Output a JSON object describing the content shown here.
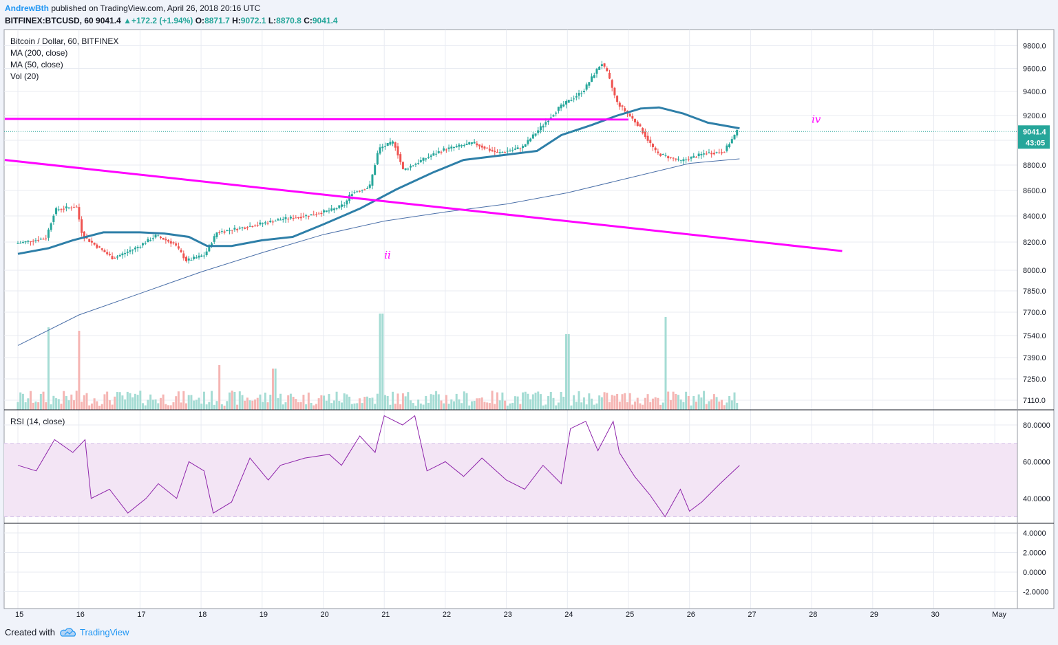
{
  "header": {
    "author": "AndrewBth",
    "published": "published on TradingView.com, April 26, 2018 20:16 UTC",
    "symbol": "BITFINEX:BTCUSD, 60",
    "last": "9041.4",
    "change": "+172.2 (+1.94%)",
    "open_label": "O:",
    "open": "8871.7",
    "high_label": "H:",
    "high": "9072.1",
    "low_label": "L:",
    "low": "8870.8",
    "close_label": "C:",
    "close": "9041.4"
  },
  "legend": {
    "title": "Bitcoin / Dollar, 60, BITFINEX",
    "ma200": "MA (200, close)",
    "ma50": "MA (50, close)",
    "vol": "Vol (20)",
    "rsi": "RSI (14, close)"
  },
  "footer": {
    "created_with": "Created with",
    "brand": "TradingView"
  },
  "colors": {
    "up": "#26a69a",
    "down": "#ef5350",
    "trendline": "#ff00ff",
    "ma50": "#2e7fa8",
    "ma200": "#4a6fa8",
    "rsi": "#8e24aa",
    "rsi_band": "#f3e5f5"
  },
  "chart_data": {
    "type": "candlestick",
    "x_ticks": [
      "15",
      "16",
      "17",
      "18",
      "19",
      "20",
      "21",
      "22",
      "23",
      "24",
      "25",
      "26",
      "27",
      "28",
      "29",
      "30",
      "May"
    ],
    "price_ticks": [
      "9800.0",
      "9600.0",
      "9400.0",
      "9200.0",
      "9000.0",
      "8800.0",
      "8600.0",
      "8400.0",
      "8200.0",
      "8000.0",
      "7850.0",
      "7700.0",
      "7540.0",
      "7390.0",
      "7250.0",
      "7110.0"
    ],
    "price_axis_labels": {
      "last_price": "9041.4",
      "countdown": "43:05"
    },
    "rsi_ticks": [
      "80.0000",
      "60.0000",
      "40.0000"
    ],
    "rsi_band": [
      30,
      70
    ],
    "rsi_last": 58,
    "osc_ticks": [
      "4.0000",
      "2.0000",
      "0.0000",
      "-2.0000"
    ],
    "wave_labels": [
      {
        "text": "ii",
        "date": "Apr 21 00:00",
        "price": 7950
      },
      {
        "text": "iv",
        "date": "Apr 28 00:00",
        "price": 9150
      }
    ],
    "trendlines": [
      {
        "name": "horizontal resistance",
        "from": [
          "Apr 15 00:00",
          9153
        ],
        "to": [
          "Apr 25 00:00",
          9148
        ]
      },
      {
        "name": "descending support",
        "from": [
          "Apr 15 00:00",
          8790
        ],
        "to": [
          "Apr 28 12:00",
          7985
        ]
      }
    ],
    "price_path": [
      [
        0,
        8050
      ],
      [
        0.5,
        8100
      ],
      [
        0.65,
        8350
      ],
      [
        1,
        8380
      ],
      [
        1.1,
        8120
      ],
      [
        1.4,
        8000
      ],
      [
        1.6,
        7920
      ],
      [
        2,
        8020
      ],
      [
        2.3,
        8120
      ],
      [
        2.6,
        8050
      ],
      [
        2.8,
        7900
      ],
      [
        3.1,
        7950
      ],
      [
        3.3,
        8150
      ],
      [
        3.8,
        8200
      ],
      [
        4.3,
        8260
      ],
      [
        4.8,
        8300
      ],
      [
        5.2,
        8350
      ],
      [
        5.4,
        8400
      ],
      [
        5.5,
        8500
      ],
      [
        5.8,
        8550
      ],
      [
        5.95,
        8890
      ],
      [
        6.2,
        8950
      ],
      [
        6.35,
        8700
      ],
      [
        6.7,
        8800
      ],
      [
        7,
        8880
      ],
      [
        7.5,
        8940
      ],
      [
        7.9,
        8850
      ],
      [
        8.3,
        8900
      ],
      [
        8.9,
        9250
      ],
      [
        9.3,
        9400
      ],
      [
        9.6,
        9650
      ],
      [
        9.7,
        9550
      ],
      [
        9.85,
        9300
      ],
      [
        10.2,
        9100
      ],
      [
        10.5,
        8850
      ],
      [
        10.9,
        8780
      ],
      [
        11.3,
        8850
      ],
      [
        11.6,
        8860
      ],
      [
        11.82,
        9041
      ]
    ],
    "ma50_path": [
      [
        0,
        7960
      ],
      [
        0.5,
        8010
      ],
      [
        0.9,
        8080
      ],
      [
        1.4,
        8150
      ],
      [
        2,
        8150
      ],
      [
        2.4,
        8140
      ],
      [
        2.8,
        8110
      ],
      [
        3.1,
        8030
      ],
      [
        3.5,
        8030
      ],
      [
        4,
        8080
      ],
      [
        4.5,
        8110
      ],
      [
        5,
        8220
      ],
      [
        5.6,
        8360
      ],
      [
        6.2,
        8530
      ],
      [
        6.8,
        8680
      ],
      [
        7.3,
        8790
      ],
      [
        7.9,
        8830
      ],
      [
        8.5,
        8870
      ],
      [
        8.9,
        9010
      ],
      [
        9.4,
        9100
      ],
      [
        9.8,
        9180
      ],
      [
        10.2,
        9245
      ],
      [
        10.5,
        9255
      ],
      [
        10.9,
        9200
      ],
      [
        11.3,
        9120
      ],
      [
        11.82,
        9070
      ]
    ],
    "ma200_path": [
      [
        0,
        7150
      ],
      [
        1,
        7420
      ],
      [
        2,
        7610
      ],
      [
        3,
        7800
      ],
      [
        4,
        7970
      ],
      [
        5,
        8130
      ],
      [
        6,
        8250
      ],
      [
        7,
        8330
      ],
      [
        8,
        8400
      ],
      [
        9,
        8500
      ],
      [
        10,
        8630
      ],
      [
        11,
        8760
      ],
      [
        11.82,
        8800
      ]
    ],
    "rsi_path": [
      [
        0,
        58
      ],
      [
        0.3,
        55
      ],
      [
        0.6,
        72
      ],
      [
        0.9,
        65
      ],
      [
        1.1,
        72
      ],
      [
        1.2,
        40
      ],
      [
        1.5,
        45
      ],
      [
        1.8,
        32
      ],
      [
        2.1,
        40
      ],
      [
        2.3,
        48
      ],
      [
        2.6,
        40
      ],
      [
        2.8,
        60
      ],
      [
        3.05,
        55
      ],
      [
        3.2,
        32
      ],
      [
        3.5,
        38
      ],
      [
        3.8,
        62
      ],
      [
        4.1,
        50
      ],
      [
        4.3,
        58
      ],
      [
        4.7,
        62
      ],
      [
        5.1,
        64
      ],
      [
        5.3,
        58
      ],
      [
        5.6,
        74
      ],
      [
        5.85,
        65
      ],
      [
        6.0,
        85
      ],
      [
        6.3,
        80
      ],
      [
        6.5,
        85
      ],
      [
        6.7,
        55
      ],
      [
        7,
        60
      ],
      [
        7.3,
        52
      ],
      [
        7.6,
        62
      ],
      [
        8,
        50
      ],
      [
        8.3,
        45
      ],
      [
        8.6,
        58
      ],
      [
        8.9,
        48
      ],
      [
        9.05,
        78
      ],
      [
        9.3,
        82
      ],
      [
        9.5,
        66
      ],
      [
        9.75,
        82
      ],
      [
        9.85,
        65
      ],
      [
        10.1,
        52
      ],
      [
        10.35,
        42
      ],
      [
        10.6,
        30
      ],
      [
        10.85,
        45
      ],
      [
        11.0,
        33
      ],
      [
        11.2,
        38
      ],
      [
        11.5,
        48
      ],
      [
        11.82,
        58
      ]
    ],
    "volume_profile": "low baseline with spikes on Apr 15 12:00, Apr 16 00:00, Apr 21 00:00, Apr 24 00:00 and Apr 25 12:00"
  }
}
